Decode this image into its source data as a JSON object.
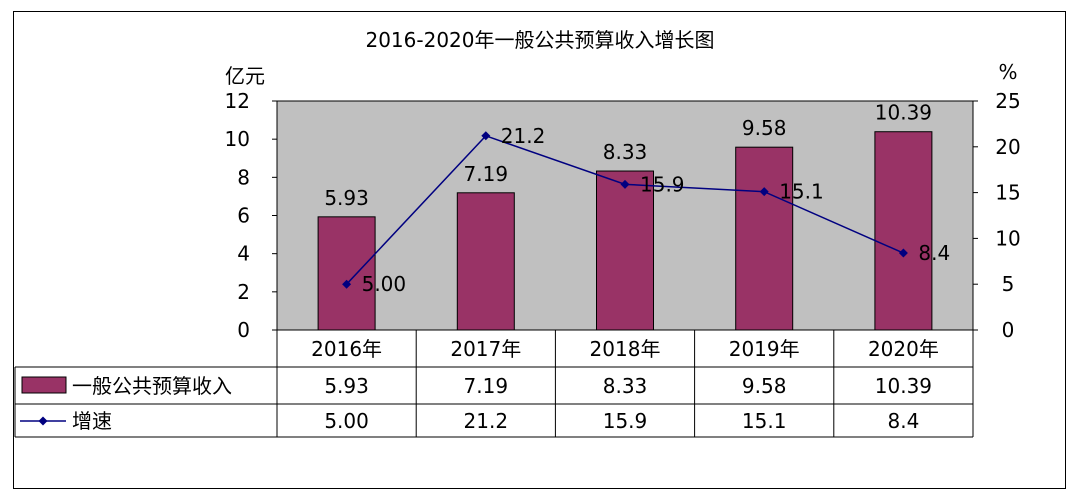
{
  "chart_data": {
    "type": "bar",
    "title": "2016-2020年一般公共预算收入增长图",
    "categories": [
      "2016年",
      "2017年",
      "2018年",
      "2019年",
      "2020年"
    ],
    "y_left_unit": "亿元",
    "y_right_unit": "%",
    "ylim_left": [
      0,
      12
    ],
    "yticks_left": [
      "0",
      "2",
      "4",
      "6",
      "8",
      "10",
      "12"
    ],
    "ylim_right": [
      0,
      25
    ],
    "yticks_right": [
      "0",
      "5",
      "10",
      "15",
      "20",
      "25"
    ],
    "series": [
      {
        "name": "一般公共预算收入",
        "type": "bar",
        "axis": "left",
        "color": "#993366",
        "values": [
          5.93,
          7.19,
          8.33,
          9.58,
          10.39
        ],
        "labels": [
          "5.93",
          "7.19",
          "8.33",
          "9.58",
          "10.39"
        ]
      },
      {
        "name": "增速",
        "type": "line",
        "axis": "right",
        "color": "#000080",
        "values": [
          5.0,
          21.2,
          15.9,
          15.1,
          8.4
        ],
        "labels": [
          "5.00",
          "21.2",
          "15.9",
          "15.1",
          "8.4"
        ]
      }
    ],
    "plot_background": "#C0C0C0",
    "grid": false,
    "legend": "data-table-bottom"
  }
}
